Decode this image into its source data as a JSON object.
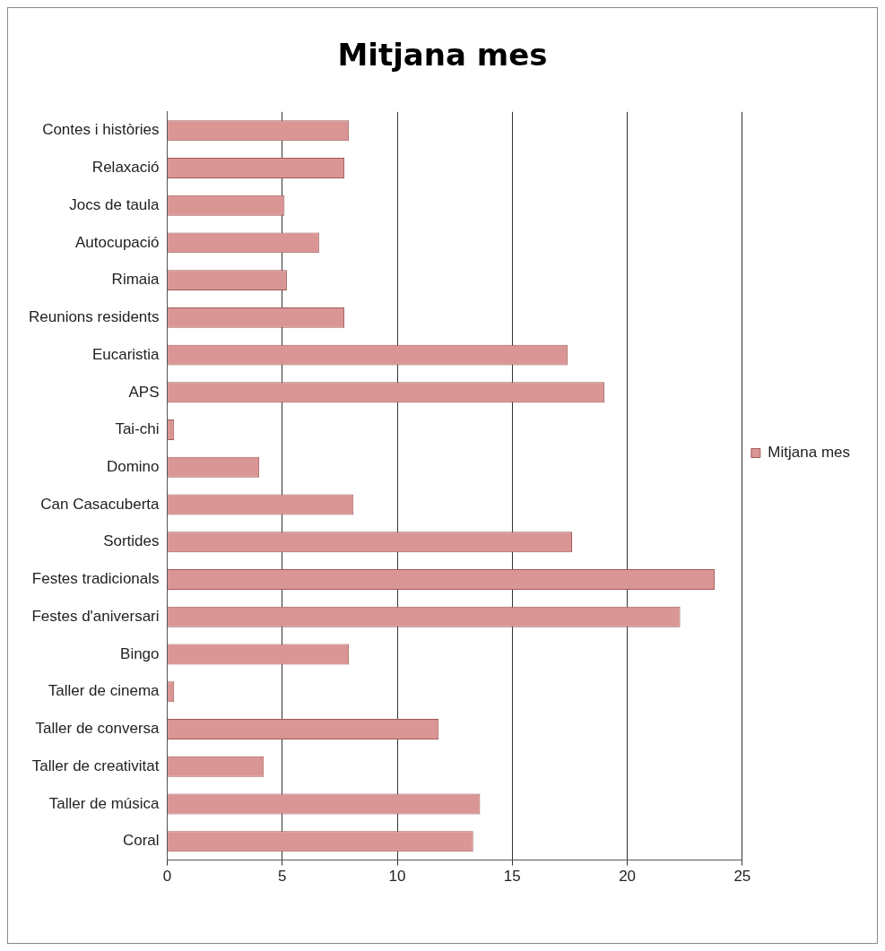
{
  "chart_data": {
    "type": "bar",
    "orientation": "horizontal",
    "title": "Mitjana mes",
    "categories": [
      "Contes i històries",
      "Relaxació",
      "Jocs de taula",
      "Autocupació",
      "Rimaia",
      "Reunions residents",
      "Eucaristia",
      "APS",
      "Tai-chi",
      "Domino",
      "Can Casacuberta",
      "Sortides",
      "Festes tradicionals",
      "Festes d'aniversari",
      "Bingo",
      "Taller de cinema",
      "Taller de conversa",
      "Taller de creativitat",
      "Taller de música",
      "Coral"
    ],
    "series": [
      {
        "name": "Mitjana mes",
        "color": "#d99694",
        "values": [
          7.9,
          7.7,
          5.1,
          6.6,
          5.2,
          7.7,
          17.4,
          19,
          0.3,
          4,
          8.1,
          17.6,
          23.8,
          22.3,
          7.9,
          0.3,
          11.8,
          4.2,
          13.6,
          13.3
        ]
      }
    ],
    "xlim": [
      0,
      25
    ],
    "xticks": [
      0,
      5,
      10,
      15,
      20,
      25
    ],
    "grid": "x",
    "legend": "right"
  }
}
